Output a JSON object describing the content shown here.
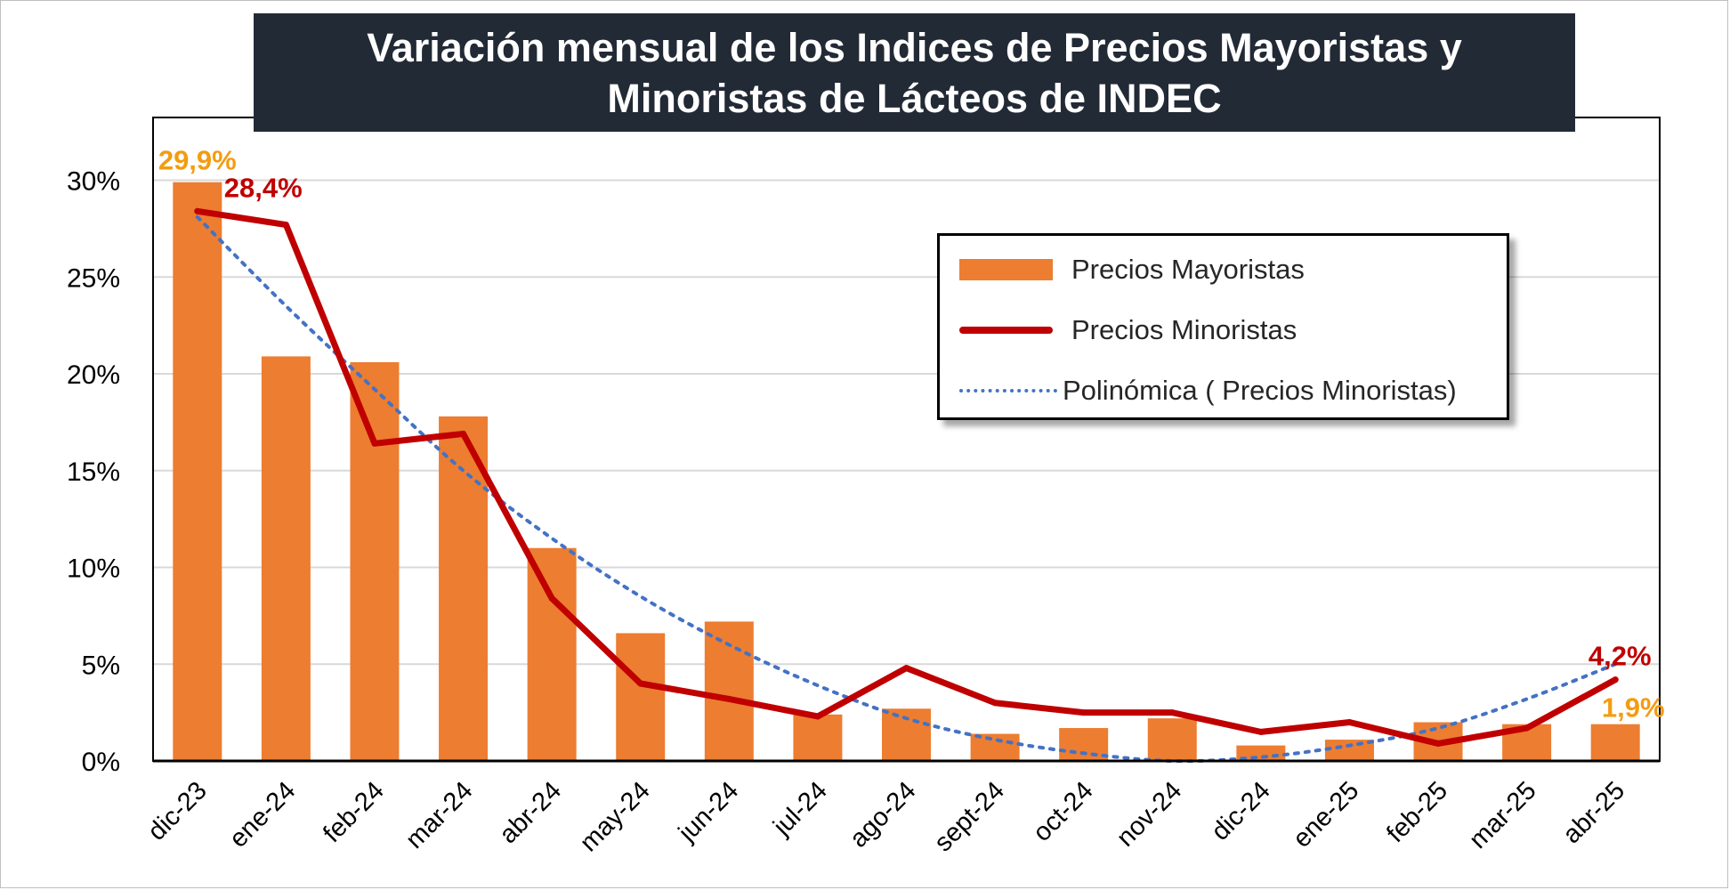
{
  "chart_data": {
    "type": "bar",
    "title": "Variación mensual de los Indices de Precios Mayoristas y Minoristas de Lácteos de INDEC",
    "categories": [
      "dic-23",
      "ene-24",
      "feb-24",
      "mar-24",
      "abr-24",
      "may-24",
      "jun-24",
      "jul-24",
      "ago-24",
      "sept-24",
      "oct-24",
      "nov-24",
      "dic-24",
      "ene-25",
      "feb-25",
      "mar-25",
      "abr-25"
    ],
    "series": [
      {
        "name": "Precios Mayoristas",
        "type": "bar",
        "color": "#ed7d31",
        "values": [
          29.9,
          20.9,
          20.6,
          17.8,
          11.0,
          6.6,
          7.2,
          2.4,
          2.7,
          1.4,
          1.7,
          2.2,
          0.8,
          1.1,
          2.0,
          1.9,
          1.9
        ]
      },
      {
        "name": "Precios Minoristas",
        "type": "line",
        "color": "#c00000",
        "values": [
          28.4,
          27.7,
          16.4,
          16.9,
          8.4,
          4.0,
          3.2,
          2.3,
          4.8,
          3.0,
          2.5,
          2.5,
          1.5,
          2.0,
          0.9,
          1.7,
          4.2
        ]
      },
      {
        "name": "Polinómica ( Precios Minoristas)",
        "type": "trendline",
        "color": "#4472c4",
        "values": [
          28.1,
          23.5,
          19.2,
          15.0,
          11.5,
          8.5,
          6.0,
          3.9,
          2.2,
          1.1,
          0.4,
          0.0,
          0.2,
          0.8,
          1.7,
          3.2,
          5.0
        ]
      }
    ],
    "data_labels": [
      {
        "series": "Precios Mayoristas",
        "category": "dic-23",
        "text": "29,9%",
        "color": "#f39c12"
      },
      {
        "series": "Precios Minoristas",
        "category": "dic-23",
        "text": "28,4%",
        "color": "#c00000"
      },
      {
        "series": "Precios Minoristas",
        "category": "abr-25",
        "text": "4,2%",
        "color": "#c00000"
      },
      {
        "series": "Precios Mayoristas",
        "category": "abr-25",
        "text": "1,9%",
        "color": "#f39c12"
      }
    ],
    "yticks": [
      "0%",
      "5%",
      "10%",
      "15%",
      "20%",
      "25%",
      "30%"
    ],
    "ylim": [
      0,
      32.5
    ],
    "grid": true,
    "legend_position": "top-right"
  },
  "colors": {
    "title_background": "#222a35",
    "bar": "#ed7d31",
    "line": "#c00000",
    "trend": "#4472c4",
    "label_orange": "#f39c12",
    "label_red": "#c00000"
  }
}
